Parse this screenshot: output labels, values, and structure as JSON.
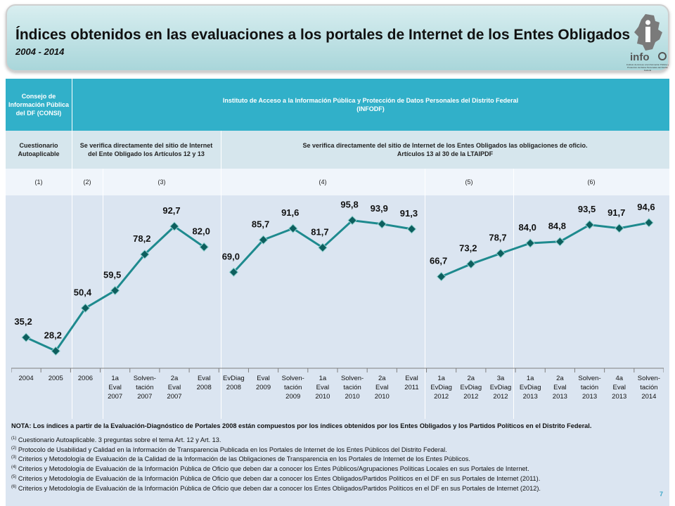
{
  "header": {
    "title": "Índices obtenidos en las evaluaciones a los portales de Internet de los Entes Obligados",
    "subtitle": "2004 - 2014",
    "logo_text": "info",
    "logo_tagline": "Instituto de Acceso a la Información Pública y Protección de Datos Personales del Distrito Federal"
  },
  "table": {
    "row1": {
      "left": "Consejo de Información Pública del DF (CONSI)",
      "right_line1": "Instituto de Acceso a la Información Pública y Protección de Datos Personales del Distrito Federal",
      "right_line2": "(INFODF)"
    },
    "row2": {
      "c1": "Cuestionario Autoaplicable",
      "c2": "Se verifica directamente del sitio de Internet del Ente Obligado los Artículos 12 y 13",
      "c3_line1": "Se verifica directamente del sitio de Internet de los Entes Obligados las obligaciones de oficio.",
      "c3_line2": "Artículos 13 al 30 de la LTAIPDF"
    },
    "row3": [
      "(1)",
      "(2)",
      "(3)",
      "(4)",
      "(5)",
      "(6)"
    ]
  },
  "chart_data": {
    "type": "line",
    "categories": [
      "2004",
      "2005",
      "2006",
      "1a Eval 2007",
      "Solven- tación 2007",
      "2a Eval 2007",
      "Eval 2008",
      "EvDiag 2008",
      "Eval 2009",
      "Solven- tación 2009",
      "1a Eval 2010",
      "Solven- tación 2010",
      "2a Eval 2010",
      "Eval 2011",
      "1a EvDiag 2012",
      "2a EvDiag 2012",
      "3a EvDiag 2012",
      "1a EvDiag 2013",
      "2a Eval 2013",
      "Solven- tación 2013",
      "4a Eval 2013",
      "Solven- tación 2014"
    ],
    "values": [
      35.2,
      28.2,
      50.4,
      59.5,
      78.2,
      92.7,
      82.0,
      69.0,
      85.7,
      91.6,
      81.7,
      95.8,
      93.9,
      91.3,
      66.7,
      73.2,
      78.7,
      84.0,
      84.8,
      93.5,
      91.7,
      94.6
    ],
    "labels": [
      "35,2",
      "28,2",
      "50,4",
      "59,5",
      "78,2",
      "92,7",
      "82,0",
      "69,0",
      "85,7",
      "91,6",
      "81,7",
      "95,8",
      "93,9",
      "91,3",
      "66,7",
      "73,2",
      "78,7",
      "84,0",
      "84,8",
      "93,5",
      "91,7",
      "94,6"
    ],
    "segments": [
      [
        0,
        6
      ],
      [
        7,
        13
      ],
      [
        14,
        21
      ]
    ],
    "title": "",
    "xlabel": "",
    "ylabel": "",
    "line_color": "#1e8a8e",
    "marker_color": "#0d5f5e"
  },
  "notes": {
    "main": "NOTA: Los índices a partir de la Evaluación-Diagnóstico de Portales 2008 están compuestos por los índices obtenidos por los Entes Obligados y los Partidos Políticos en el Distrito Federal.",
    "items": [
      {
        "num": "(1)",
        "text": "Cuestionario Autoaplicable. 3 preguntas sobre el tema Art. 12 y Art. 13."
      },
      {
        "num": "(2)",
        "text": "Protocolo de Usabilidad y Calidad en la Información de Transparencia Publicada en los Portales de Internet de los Entes Públicos del Distrito Federal."
      },
      {
        "num": "(3)",
        "text": "Criterios y Metodología de Evaluación de la Calidad de la Información de las Obligaciones de Transparencia en los Portales de Internet de los Entes Públicos."
      },
      {
        "num": "(4)",
        "text": "Criterios y Metodología de Evaluación de la Información Pública de Oficio que deben dar a conocer los Entes Públicos/Agrupaciones Políticas Locales en sus Portales de Internet."
      },
      {
        "num": "(5)",
        "text": "Criterios y Metodología de Evaluación de la Información Pública de Oficio que deben dar a conocer los Entes Obligados/Partidos Políticos en el DF en sus Portales de Internet (2011)."
      },
      {
        "num": "(6)",
        "text": "Criterios y Metodología de Evaluación de la Información Pública de Oficio que deben dar a conocer los Entes Obligados/Partidos Políticos en el DF en sus Portales de Internet (2012)."
      }
    ]
  },
  "page_number": "7",
  "colors": {
    "header_blue": "#31b0c9",
    "panel": "#dbe5f1",
    "title_bg": "#a9d6da"
  }
}
